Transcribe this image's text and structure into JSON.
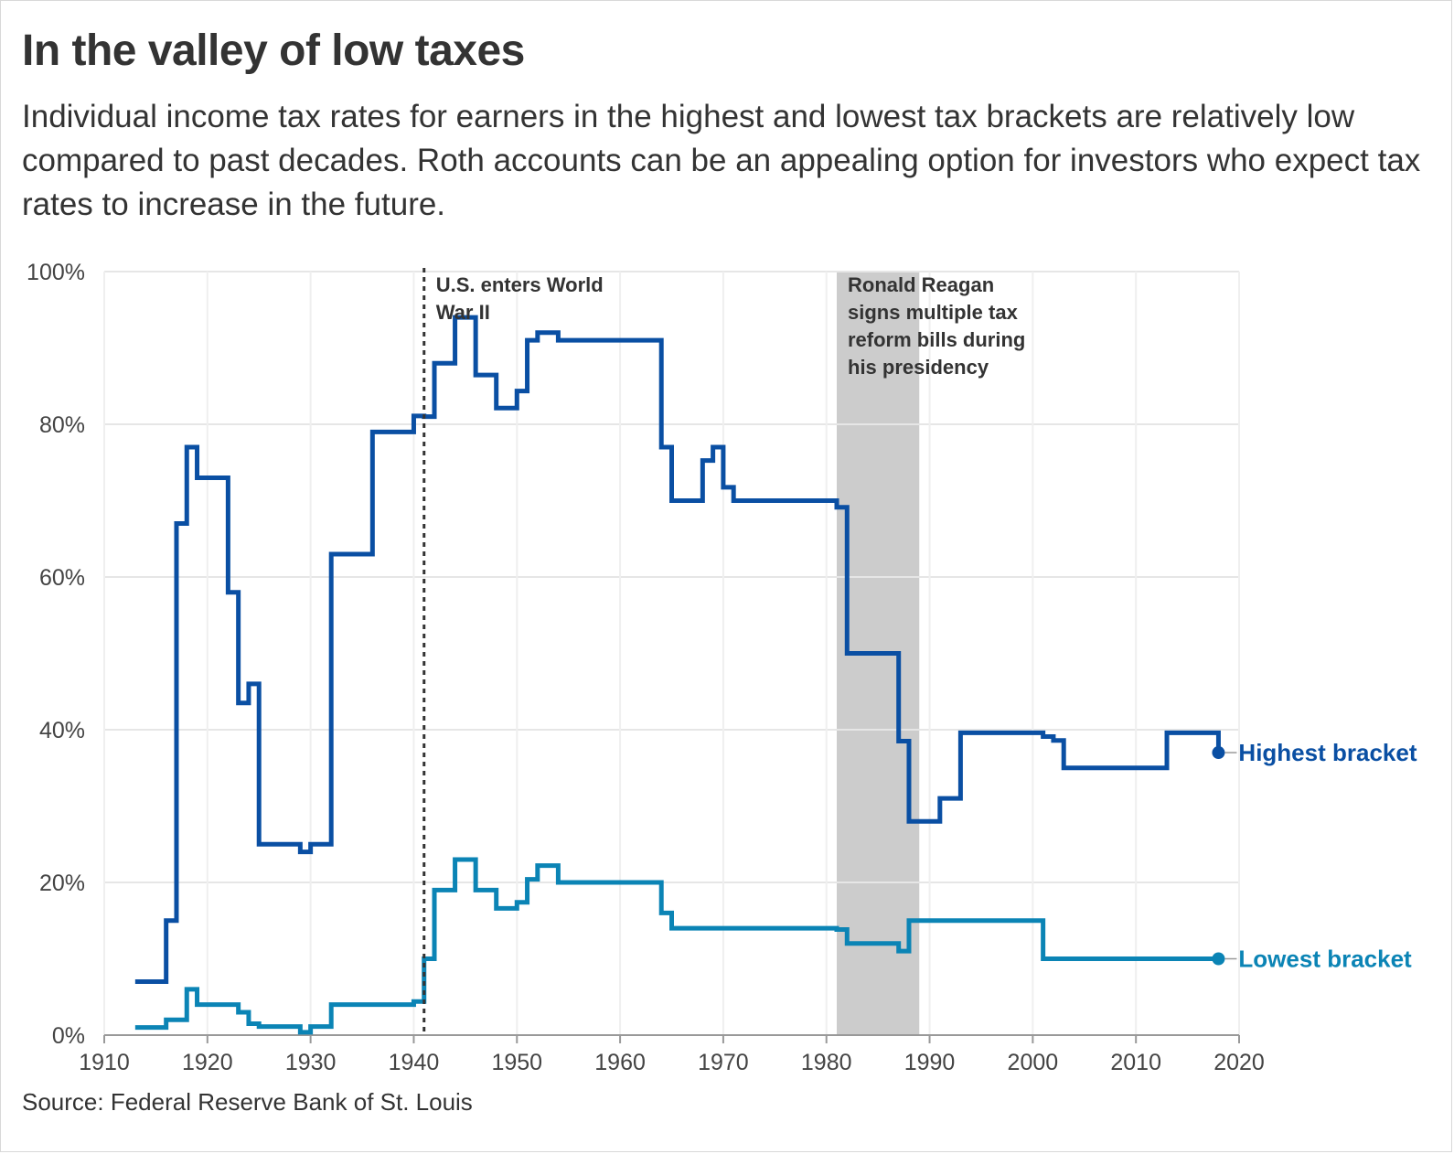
{
  "title": "In the valley of low taxes",
  "subtitle": "Individual income tax rates for earners in the highest and lowest tax brackets are relatively low compared to past decades. Roth accounts can be an appealing option for investors who expect tax rates to increase in the future.",
  "source": "Source: Federal Reserve Bank of St. Louis",
  "chart_data": {
    "type": "line",
    "step": true,
    "xlim": [
      1910,
      2020
    ],
    "ylim": [
      0,
      100
    ],
    "x_ticks": [
      1910,
      1920,
      1930,
      1940,
      1950,
      1960,
      1970,
      1980,
      1990,
      2000,
      2010,
      2020
    ],
    "x_tick_labels": [
      "1910",
      "1920",
      "1930",
      "1940",
      "1950",
      "1960",
      "1970",
      "1980",
      "1990",
      "2000",
      "2010",
      "2020"
    ],
    "y_ticks": [
      0,
      20,
      40,
      60,
      80,
      100
    ],
    "y_tick_labels": [
      "0%",
      "20%",
      "40%",
      "60%",
      "80%",
      "100%"
    ],
    "grid": true,
    "annotations": [
      {
        "type": "vline",
        "x": 1941,
        "style": "dotted",
        "lines": [
          "U.S. enters World",
          "War II"
        ]
      },
      {
        "type": "band",
        "x_start": 1981,
        "x_end": 1989,
        "lines": [
          "Ronald Reagan",
          "signs multiple tax",
          "reform bills during",
          "his presidency"
        ]
      }
    ],
    "series": [
      {
        "name": "Highest bracket",
        "color": "#0a4fa3",
        "x": [
          1913,
          1916,
          1917,
          1918,
          1919,
          1922,
          1923,
          1924,
          1925,
          1929,
          1930,
          1932,
          1936,
          1940,
          1941,
          1942,
          1944,
          1946,
          1948,
          1950,
          1951,
          1952,
          1954,
          1964,
          1965,
          1968,
          1969,
          1970,
          1971,
          1981,
          1982,
          1987,
          1988,
          1991,
          1993,
          2001,
          2002,
          2003,
          2013,
          2018
        ],
        "values": [
          7,
          15,
          67,
          77,
          73,
          58,
          43.5,
          46,
          25,
          24,
          25,
          63,
          79,
          81.1,
          81,
          88,
          94,
          86.45,
          82.13,
          84.36,
          91,
          92,
          91,
          77,
          70,
          75.25,
          77,
          71.75,
          70,
          69.13,
          50,
          38.5,
          28,
          31,
          39.6,
          39.1,
          38.6,
          35,
          39.6,
          37
        ]
      },
      {
        "name": "Lowest bracket",
        "color": "#0b84b5",
        "x": [
          1913,
          1916,
          1918,
          1919,
          1923,
          1924,
          1925,
          1929,
          1930,
          1932,
          1940,
          1941,
          1942,
          1944,
          1946,
          1948,
          1950,
          1951,
          1952,
          1954,
          1964,
          1965,
          1981,
          1982,
          1987,
          1988,
          2001,
          2018
        ],
        "values": [
          1,
          2,
          6,
          4,
          3,
          1.5,
          1.125,
          0.375,
          1.125,
          4,
          4.4,
          10,
          19,
          23,
          19,
          16.6,
          17.4,
          20.4,
          22.2,
          20,
          16,
          14,
          13.825,
          12,
          11,
          15,
          10,
          10
        ]
      }
    ]
  }
}
